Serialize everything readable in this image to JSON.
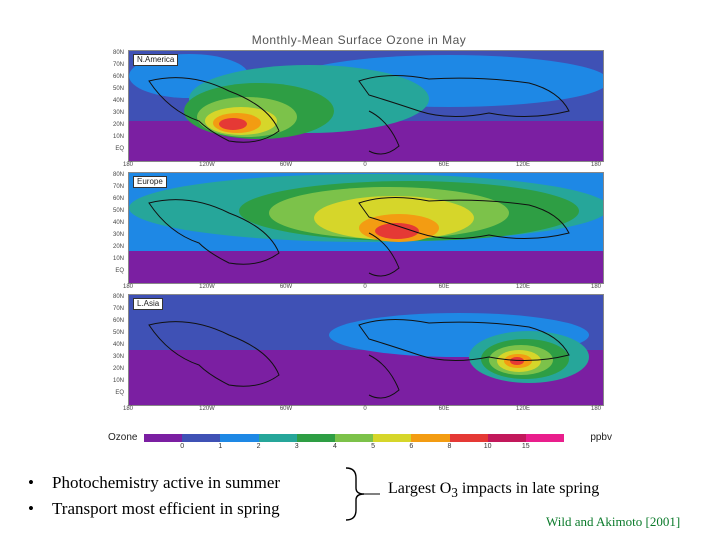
{
  "figure": {
    "title": "Monthly-Mean Surface Ozone in May",
    "lat_ticks": [
      "80N",
      "70N",
      "60N",
      "50N",
      "40N",
      "30N",
      "20N",
      "10N",
      "EQ"
    ],
    "lon_ticks": [
      "180",
      "120W",
      "60W",
      "0",
      "60E",
      "120E",
      "180"
    ],
    "panels": [
      {
        "label": "N.America"
      },
      {
        "label": "Europe"
      },
      {
        "label": "L.Asia"
      }
    ],
    "colorbar": {
      "name": "Ozone",
      "unit": "ppbv",
      "ticks": [
        "0",
        "1",
        "2",
        "3",
        "4",
        "5",
        "6",
        "8",
        "10",
        "15"
      ],
      "colors": [
        "#7b1fa2",
        "#3f51b5",
        "#1e88e5",
        "#26a69a",
        "#2e9e44",
        "#7cc24a",
        "#d6d62a",
        "#f39c12",
        "#e53935",
        "#c2185b",
        "#e91e8c"
      ]
    }
  },
  "bullets": [
    "Photochemistry active in summer",
    "Transport most efficient in spring"
  ],
  "impact": {
    "prefix": "Largest O",
    "subscript": "3",
    "suffix": " impacts in late spring"
  },
  "citation": "Wild and Akimoto [2001]"
}
